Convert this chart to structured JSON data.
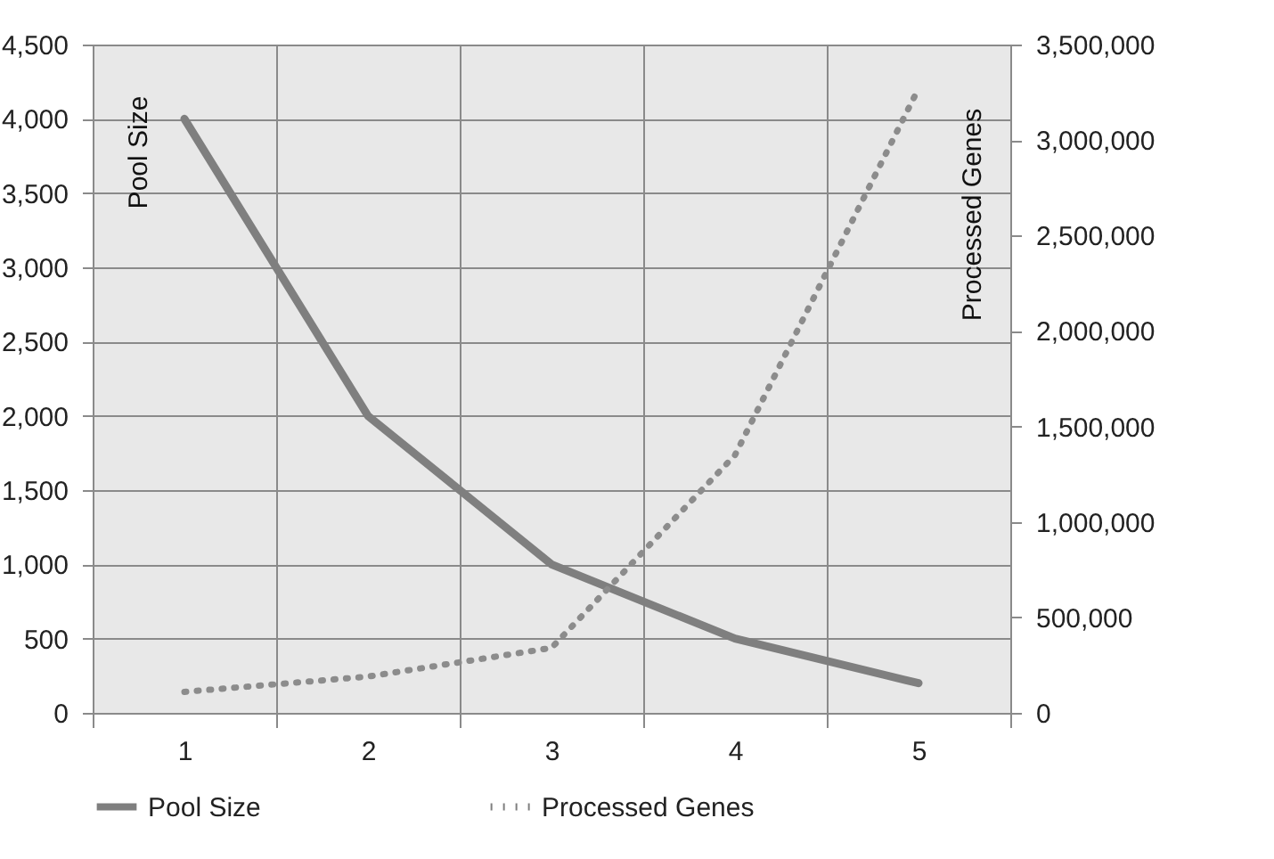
{
  "chart_data": {
    "type": "line",
    "ylabel": "Pool Size",
    "y2label": "Processed  Genes",
    "categories": [
      "1",
      "2",
      "3",
      "4",
      "5"
    ],
    "series": [
      {
        "name": "Pool Size",
        "color": "#7f7f7f",
        "line_style": "solid",
        "values": [
          4000,
          2000,
          1000,
          500,
          200
        ]
      },
      {
        "name": "Processed Genes",
        "color": "#8c8c8c",
        "line_style": "dotted",
        "axis": "y2",
        "values": [
          110000,
          190000,
          340000,
          1350000,
          3270000
        ]
      }
    ],
    "ylim": [
      0,
      4500
    ],
    "yticks": [
      0,
      {
        "value": 500,
        "label": "500"
      },
      {
        "value": 1000,
        "label": "1,000"
      },
      {
        "value": 1500,
        "label": "1,500"
      },
      {
        "value": 2000,
        "label": "2,000"
      },
      {
        "value": 2500,
        "label": "2,500"
      },
      {
        "value": 3000,
        "label": "3,000"
      },
      {
        "value": 3500,
        "label": "3,500"
      },
      {
        "value": 4000,
        "label": "4,000"
      },
      {
        "value": 4500,
        "label": "4,500"
      }
    ],
    "y2lim": [
      0,
      3500000
    ],
    "y2ticks": [
      0,
      {
        "value": 500000,
        "label": "500,000"
      },
      {
        "value": 1000000,
        "label": "1,000,000"
      },
      {
        "value": 1500000,
        "label": "1,500,000"
      },
      {
        "value": 2000000,
        "label": "2,000,000"
      },
      {
        "value": 2500000,
        "label": "2,500,000"
      },
      {
        "value": 3000000,
        "label": "3,000,000"
      },
      {
        "value": 3500000,
        "label": "3,500,000"
      }
    ],
    "grid": true,
    "legend": "bottom"
  }
}
